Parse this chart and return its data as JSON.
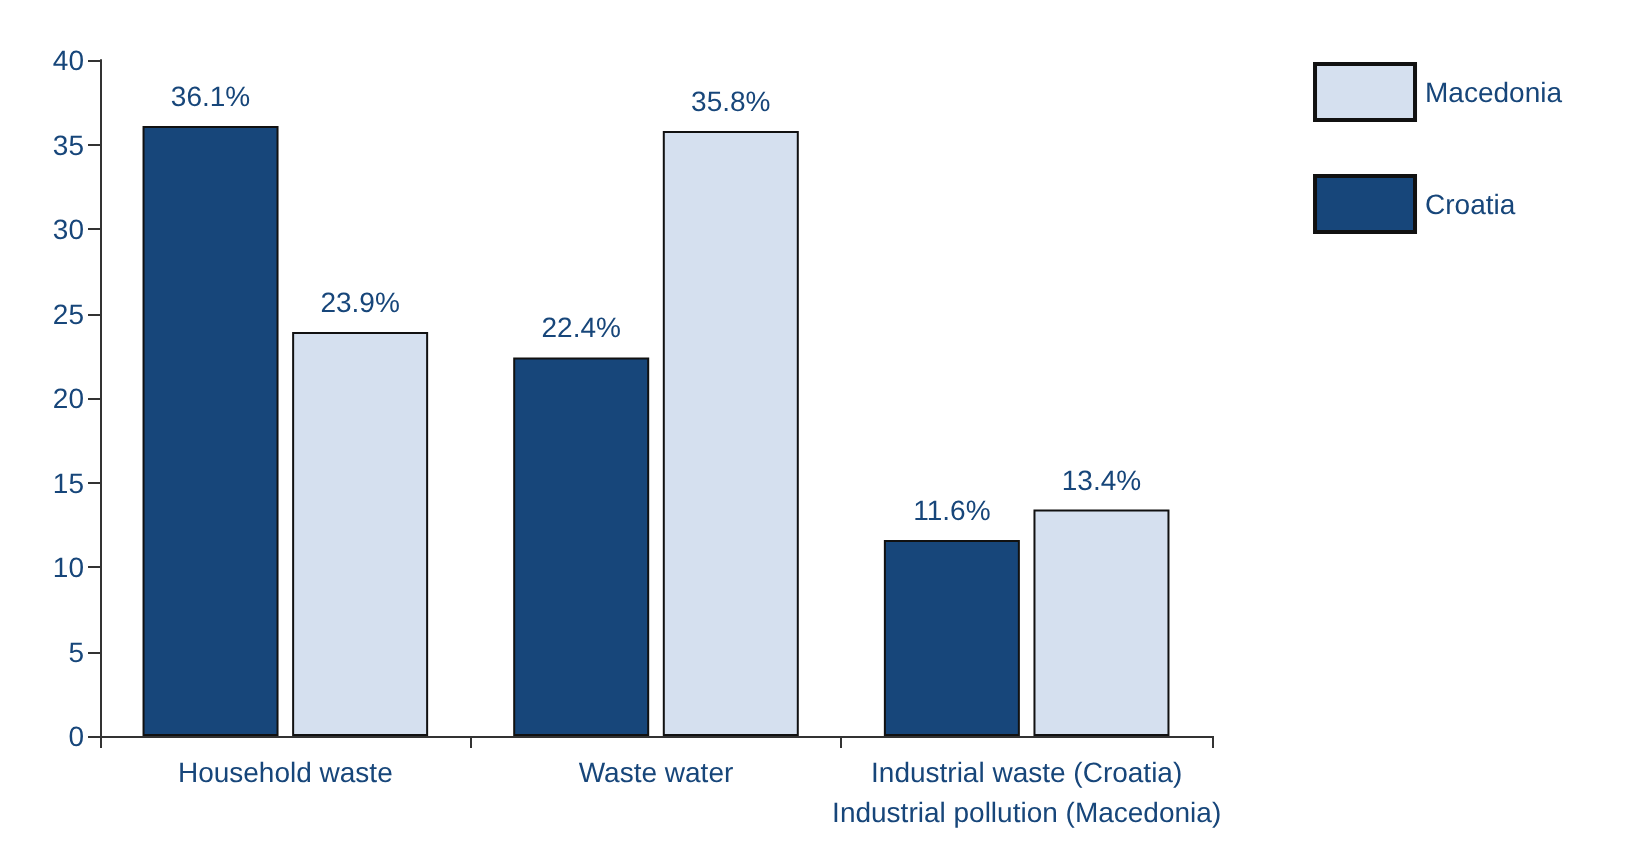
{
  "chart_data": {
    "type": "bar",
    "categories": [
      "Household waste",
      "Waste water",
      "Industrial waste (Croatia)\nIndustrial pollution (Macedonia)"
    ],
    "series": [
      {
        "name": "Croatia",
        "color": "#17467a",
        "values": [
          36.1,
          22.4,
          11.6
        ],
        "value_labels": [
          "36.1%",
          "22.4%",
          "11.6%"
        ]
      },
      {
        "name": "Macedonia",
        "color": "#d5e0ef",
        "values": [
          23.9,
          35.8,
          13.4
        ],
        "value_labels": [
          "23.9%",
          "35.8%",
          "13.4%"
        ]
      }
    ],
    "ylim": [
      0,
      40
    ],
    "yticks": [
      0,
      5,
      10,
      15,
      20,
      25,
      30,
      35,
      40
    ],
    "grid": false,
    "legend": "top right"
  }
}
